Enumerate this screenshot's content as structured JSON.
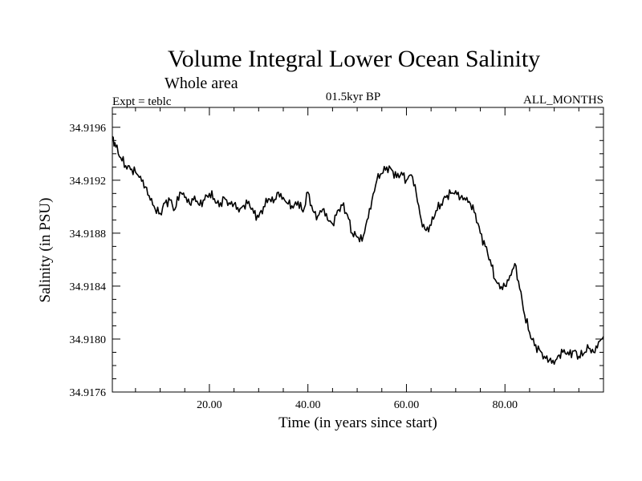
{
  "chart_data": {
    "type": "line",
    "title": "Volume Integral Lower Ocean Salinity",
    "subtitle": "Whole area",
    "header_left": "Expt = teblc",
    "header_center": "01.5kyr BP",
    "header_right": "ALL_MONTHS",
    "xlabel": "Time (in years since start)",
    "ylabel": "Salinity (in PSU)",
    "xlim": [
      0.3,
      100
    ],
    "ylim": [
      34.9176,
      34.91975
    ],
    "x_ticks": [
      20,
      40,
      60,
      80
    ],
    "x_tick_labels": [
      "20.00",
      "40.00",
      "60.00",
      "80.00"
    ],
    "y_ticks": [
      34.9176,
      34.918,
      34.9184,
      34.9188,
      34.9192,
      34.9196
    ],
    "y_tick_labels": [
      "34.9176",
      "34.9180",
      "34.9184",
      "34.9188",
      "34.9192",
      "34.9196"
    ],
    "series": [
      {
        "name": "salinity",
        "color": "#000000",
        "x": [
          0.3,
          1,
          2,
          3,
          4,
          5,
          6,
          7,
          8,
          9,
          10,
          11,
          12,
          13,
          14,
          15,
          16,
          17,
          18,
          19,
          20,
          21,
          22,
          23,
          24,
          25,
          26,
          27,
          28,
          29,
          30,
          31,
          32,
          33,
          34,
          35,
          36,
          37,
          38,
          39,
          40,
          41,
          42,
          43,
          44,
          45,
          46,
          47,
          48,
          49,
          50,
          51,
          52,
          53,
          54,
          55,
          56,
          57,
          58,
          59,
          60,
          61,
          62,
          63,
          64,
          65,
          66,
          67,
          68,
          69,
          70,
          71,
          72,
          73,
          74,
          75,
          76,
          77,
          78,
          79,
          80,
          81,
          82,
          83,
          84,
          85,
          86,
          87,
          88,
          89,
          90,
          91,
          92,
          93,
          94,
          95,
          96,
          97,
          98,
          99,
          100
        ],
        "values": [
          34.91953,
          34.91945,
          34.91937,
          34.91931,
          34.91928,
          34.91926,
          34.91923,
          34.91915,
          34.91905,
          34.91898,
          34.91895,
          34.91903,
          34.91905,
          34.91898,
          34.91911,
          34.91907,
          34.91902,
          34.91908,
          34.91901,
          34.91905,
          34.9191,
          34.91906,
          34.919,
          34.91907,
          34.91903,
          34.91902,
          34.91896,
          34.91901,
          34.91904,
          34.91895,
          34.91892,
          34.919,
          34.91906,
          34.91903,
          34.91911,
          34.91907,
          34.91902,
          34.91899,
          34.91904,
          34.91896,
          34.91911,
          34.91897,
          34.91893,
          34.91898,
          34.9189,
          34.91887,
          34.91897,
          34.91901,
          34.91894,
          34.9188,
          34.91877,
          34.91874,
          34.9189,
          34.91905,
          34.9192,
          34.91925,
          34.9193,
          34.91928,
          34.91922,
          34.91926,
          34.9192,
          34.91924,
          34.9191,
          34.9189,
          34.91882,
          34.91886,
          34.91897,
          34.91902,
          34.91907,
          34.9191,
          34.91912,
          34.91907,
          34.91905,
          34.91902,
          34.91895,
          34.9188,
          34.9187,
          34.9186,
          34.91845,
          34.91838,
          34.9184,
          34.91848,
          34.91857,
          34.91838,
          34.91818,
          34.91805,
          34.91795,
          34.91792,
          34.91787,
          34.91784,
          34.91781,
          34.91788,
          34.91792,
          34.91788,
          34.91791,
          34.91787,
          34.91789,
          34.91793,
          34.9179,
          34.91798,
          34.91802
        ]
      }
    ]
  }
}
